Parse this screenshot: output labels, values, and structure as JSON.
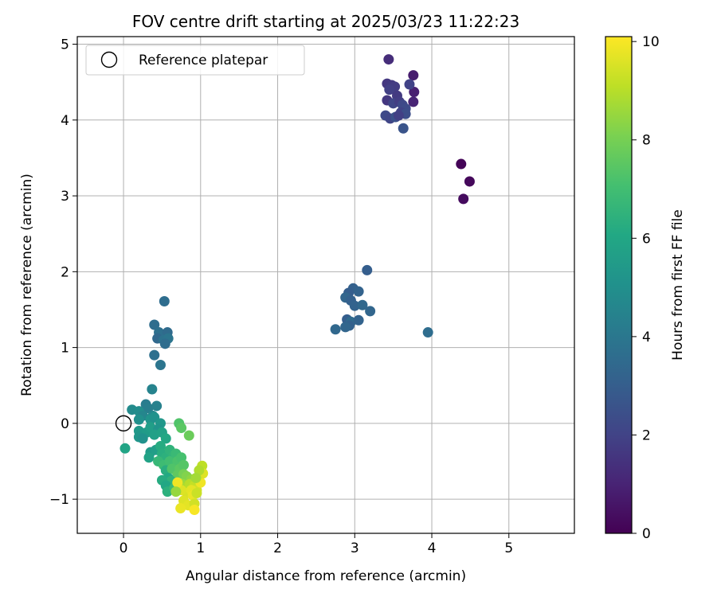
{
  "chart_data": {
    "type": "scatter",
    "title": "FOV centre drift starting at 2025/03/23 11:22:23",
    "xlabel": "Angular distance from reference (arcmin)",
    "ylabel": "Rotation from reference (arcmin)",
    "xlim": [
      -0.6,
      5.85
    ],
    "ylim": [
      -1.45,
      5.1
    ],
    "xticks": [
      0,
      1,
      2,
      3,
      4,
      5
    ],
    "xtick_labels": [
      "0",
      "1",
      "2",
      "3",
      "4",
      "5"
    ],
    "yticks": [
      -1,
      0,
      1,
      2,
      3,
      4,
      5
    ],
    "ytick_labels": [
      "−1",
      "0",
      "1",
      "2",
      "3",
      "4",
      "5"
    ],
    "grid": true,
    "legend": {
      "placement": "top-left",
      "entries": [
        "Reference platepar"
      ]
    },
    "reference_point": {
      "x": 0,
      "y": 0,
      "label": "Reference platepar"
    },
    "colorbar": {
      "label": "Hours from first FF file",
      "colormap": "viridis",
      "range": [
        0,
        10.1
      ],
      "ticks": [
        0,
        2,
        4,
        6,
        8,
        10
      ],
      "tick_labels": [
        "0",
        "2",
        "4",
        "6",
        "8",
        "10"
      ]
    },
    "points": [
      [
        4.38,
        3.42,
        0.1
      ],
      [
        4.49,
        3.19,
        0.2
      ],
      [
        4.41,
        2.96,
        0.3
      ],
      [
        3.76,
        4.59,
        0.8
      ],
      [
        3.44,
        4.8,
        1.3
      ],
      [
        3.77,
        4.37,
        0.9
      ],
      [
        3.76,
        4.24,
        1.0
      ],
      [
        3.42,
        4.48,
        1.6
      ],
      [
        3.48,
        4.46,
        1.7
      ],
      [
        3.52,
        4.44,
        1.8
      ],
      [
        3.71,
        4.47,
        2.0
      ],
      [
        3.45,
        4.4,
        1.9
      ],
      [
        3.55,
        4.32,
        1.7
      ],
      [
        3.42,
        4.26,
        1.6
      ],
      [
        3.5,
        4.22,
        2.1
      ],
      [
        3.58,
        4.24,
        1.8
      ],
      [
        3.62,
        4.2,
        2.2
      ],
      [
        3.66,
        4.15,
        2.3
      ],
      [
        3.6,
        4.1,
        2.0
      ],
      [
        3.66,
        4.08,
        2.4
      ],
      [
        3.4,
        4.06,
        2.2
      ],
      [
        3.46,
        4.02,
        2.1
      ],
      [
        3.53,
        4.04,
        2.5
      ],
      [
        3.57,
        4.06,
        1.9
      ],
      [
        3.63,
        3.89,
        2.6
      ],
      [
        3.16,
        2.02,
        3.0
      ],
      [
        2.98,
        1.78,
        3.1
      ],
      [
        3.05,
        1.74,
        3.2
      ],
      [
        2.92,
        1.72,
        3.0
      ],
      [
        2.88,
        1.66,
        3.3
      ],
      [
        2.95,
        1.62,
        3.1
      ],
      [
        3.0,
        1.55,
        3.2
      ],
      [
        3.1,
        1.56,
        3.4
      ],
      [
        3.2,
        1.48,
        3.3
      ],
      [
        2.9,
        1.37,
        3.0
      ],
      [
        2.95,
        1.34,
        3.5
      ],
      [
        3.05,
        1.36,
        3.2
      ],
      [
        2.93,
        1.29,
        3.1
      ],
      [
        2.88,
        1.27,
        3.3
      ],
      [
        2.75,
        1.24,
        3.4
      ],
      [
        3.95,
        1.2,
        3.6
      ],
      [
        0.53,
        1.61,
        3.6
      ],
      [
        0.4,
        1.3,
        3.6
      ],
      [
        0.46,
        1.2,
        3.7
      ],
      [
        0.57,
        1.2,
        3.5
      ],
      [
        0.44,
        1.12,
        3.4
      ],
      [
        0.52,
        1.1,
        3.8
      ],
      [
        0.58,
        1.12,
        3.9
      ],
      [
        0.54,
        1.05,
        3.6
      ],
      [
        0.4,
        0.9,
        3.7
      ],
      [
        0.48,
        0.77,
        3.9
      ],
      [
        0.37,
        0.45,
        4.5
      ],
      [
        0.29,
        0.25,
        4.2
      ],
      [
        0.32,
        0.2,
        4.3
      ],
      [
        0.43,
        0.23,
        4.4
      ],
      [
        0.11,
        0.18,
        4.8
      ],
      [
        0.2,
        0.16,
        4.9
      ],
      [
        0.25,
        0.1,
        4.6
      ],
      [
        0.38,
        0.1,
        4.7
      ],
      [
        0.2,
        0.05,
        5.0
      ],
      [
        0.35,
        0.05,
        5.2
      ],
      [
        0.4,
        0.08,
        5.1
      ],
      [
        0.48,
        0.0,
        5.3
      ],
      [
        0.2,
        -0.1,
        5.4
      ],
      [
        0.3,
        -0.12,
        5.5
      ],
      [
        0.35,
        -0.05,
        5.6
      ],
      [
        0.45,
        -0.08,
        5.2
      ],
      [
        0.2,
        -0.18,
        5.3
      ],
      [
        0.25,
        -0.2,
        5.1
      ],
      [
        0.4,
        -0.15,
        5.7
      ],
      [
        0.5,
        -0.12,
        5.8
      ],
      [
        0.55,
        -0.2,
        6.0
      ],
      [
        0.02,
        -0.33,
        5.9
      ],
      [
        0.35,
        -0.38,
        5.5
      ],
      [
        0.42,
        -0.35,
        5.6
      ],
      [
        0.33,
        -0.45,
        5.8
      ],
      [
        0.48,
        -0.3,
        6.2
      ],
      [
        0.5,
        -0.4,
        6.3
      ],
      [
        0.55,
        -0.45,
        6.4
      ],
      [
        0.6,
        -0.35,
        6.5
      ],
      [
        0.65,
        -0.42,
        6.6
      ],
      [
        0.45,
        -0.5,
        6.7
      ],
      [
        0.52,
        -0.55,
        6.9
      ],
      [
        0.6,
        -0.5,
        7.0
      ],
      [
        0.68,
        -0.4,
        6.8
      ],
      [
        0.7,
        -0.5,
        7.2
      ],
      [
        0.75,
        -0.45,
        7.1
      ],
      [
        0.55,
        -0.62,
        6.3
      ],
      [
        0.63,
        -0.6,
        7.3
      ],
      [
        0.73,
        -0.6,
        7.5
      ],
      [
        0.78,
        -0.55,
        7.4
      ],
      [
        0.7,
        -0.68,
        7.6
      ],
      [
        0.58,
        -0.72,
        6.1
      ],
      [
        0.62,
        -0.76,
        6.5
      ],
      [
        0.5,
        -0.75,
        6.2
      ],
      [
        0.55,
        -0.82,
        6.0
      ],
      [
        0.57,
        -0.9,
        6.4
      ],
      [
        0.66,
        -0.85,
        6.8
      ],
      [
        0.72,
        -0.0,
        7.3
      ],
      [
        0.75,
        -0.06,
        7.5
      ],
      [
        0.85,
        -0.16,
        7.8
      ],
      [
        0.78,
        -0.67,
        8.0
      ],
      [
        0.82,
        -0.7,
        8.2
      ],
      [
        0.88,
        -0.74,
        8.4
      ],
      [
        0.76,
        -0.8,
        8.6
      ],
      [
        0.8,
        -0.85,
        8.8
      ],
      [
        0.86,
        -0.8,
        9.0
      ],
      [
        0.92,
        -0.82,
        9.2
      ],
      [
        0.95,
        -0.88,
        9.4
      ],
      [
        0.82,
        -0.92,
        9.5
      ],
      [
        0.88,
        -0.88,
        9.7
      ],
      [
        0.75,
        -0.88,
        9.6
      ],
      [
        0.9,
        -0.95,
        9.8
      ],
      [
        0.95,
        -0.92,
        9.3
      ],
      [
        1.0,
        -0.78,
        9.9
      ],
      [
        1.02,
        -0.56,
        9.1
      ],
      [
        1.03,
        -0.66,
        9.6
      ],
      [
        0.98,
        -0.62,
        8.9
      ],
      [
        0.94,
        -0.72,
        8.7
      ],
      [
        0.78,
        -1.02,
        9.6
      ],
      [
        0.84,
        -1.08,
        9.7
      ],
      [
        0.92,
        -1.06,
        9.4
      ],
      [
        0.74,
        -1.12,
        9.8
      ],
      [
        0.92,
        -1.14,
        10.0
      ],
      [
        0.7,
        -0.78,
        9.9
      ],
      [
        0.68,
        -0.9,
        8.5
      ]
    ]
  }
}
